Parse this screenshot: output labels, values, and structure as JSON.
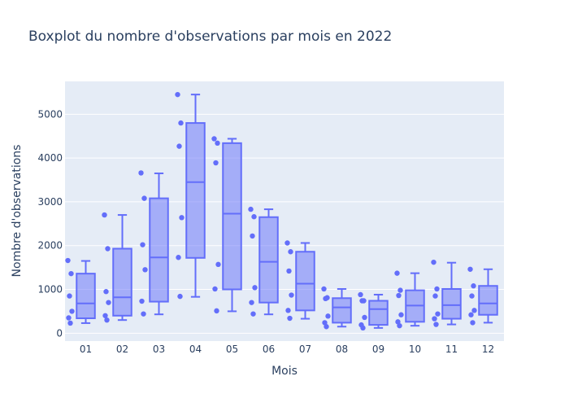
{
  "chart_data": {
    "type": "box",
    "title": "Boxplot du nombre d'observations par mois en 2022",
    "xlabel": "Mois",
    "ylabel": "Nombre d'observations",
    "ylim": [
      -180,
      5750
    ],
    "yticks": [
      0,
      1000,
      2000,
      3000,
      4000,
      5000
    ],
    "grid": true,
    "legend": "none",
    "categories": [
      "01",
      "02",
      "03",
      "04",
      "05",
      "06",
      "07",
      "08",
      "09",
      "10",
      "11",
      "12"
    ],
    "boxes": [
      {
        "category": "01",
        "min": 230,
        "q1": 340,
        "median": 680,
        "q3": 1360,
        "max": 1650,
        "points": [
          1660,
          1360,
          850,
          500,
          350,
          230
        ]
      },
      {
        "category": "02",
        "min": 300,
        "q1": 400,
        "median": 820,
        "q3": 1930,
        "max": 2700,
        "points": [
          2700,
          1930,
          950,
          700,
          400,
          300
        ]
      },
      {
        "category": "03",
        "min": 430,
        "q1": 720,
        "median": 1730,
        "q3": 3080,
        "max": 3650,
        "points": [
          3660,
          3080,
          2020,
          1450,
          730,
          440
        ]
      },
      {
        "category": "04",
        "min": 830,
        "q1": 1720,
        "median": 3450,
        "q3": 4800,
        "max": 5450,
        "points": [
          5450,
          4800,
          4270,
          2640,
          1730,
          840
        ]
      },
      {
        "category": "05",
        "min": 500,
        "q1": 1000,
        "median": 2730,
        "q3": 4340,
        "max": 4440,
        "points": [
          4440,
          4340,
          3890,
          1570,
          1010,
          510
        ]
      },
      {
        "category": "06",
        "min": 430,
        "q1": 700,
        "median": 1630,
        "q3": 2650,
        "max": 2830,
        "points": [
          2830,
          2660,
          2220,
          1040,
          700,
          440
        ]
      },
      {
        "category": "07",
        "min": 330,
        "q1": 520,
        "median": 1130,
        "q3": 1860,
        "max": 2060,
        "points": [
          2060,
          1860,
          1420,
          870,
          520,
          340
        ]
      },
      {
        "category": "08",
        "min": 150,
        "q1": 240,
        "median": 590,
        "q3": 800,
        "max": 1010,
        "points": [
          1010,
          810,
          790,
          390,
          240,
          150
        ]
      },
      {
        "category": "09",
        "min": 120,
        "q1": 190,
        "median": 550,
        "q3": 740,
        "max": 880,
        "points": [
          880,
          740,
          740,
          360,
          190,
          120
        ]
      },
      {
        "category": "10",
        "min": 170,
        "q1": 260,
        "median": 630,
        "q3": 980,
        "max": 1370,
        "points": [
          1370,
          980,
          860,
          420,
          260,
          170
        ]
      },
      {
        "category": "11",
        "min": 200,
        "q1": 330,
        "median": 640,
        "q3": 1010,
        "max": 1610,
        "points": [
          1620,
          1010,
          850,
          440,
          330,
          200
        ]
      },
      {
        "category": "12",
        "min": 240,
        "q1": 420,
        "median": 680,
        "q3": 1080,
        "max": 1460,
        "points": [
          1460,
          1080,
          850,
          520,
          420,
          240
        ]
      }
    ],
    "colors": {
      "box_fill": "rgba(99,110,250,0.5)",
      "box_line": "#636efa",
      "plot_bg": "#e5ecf6",
      "grid": "#ffffff"
    }
  }
}
